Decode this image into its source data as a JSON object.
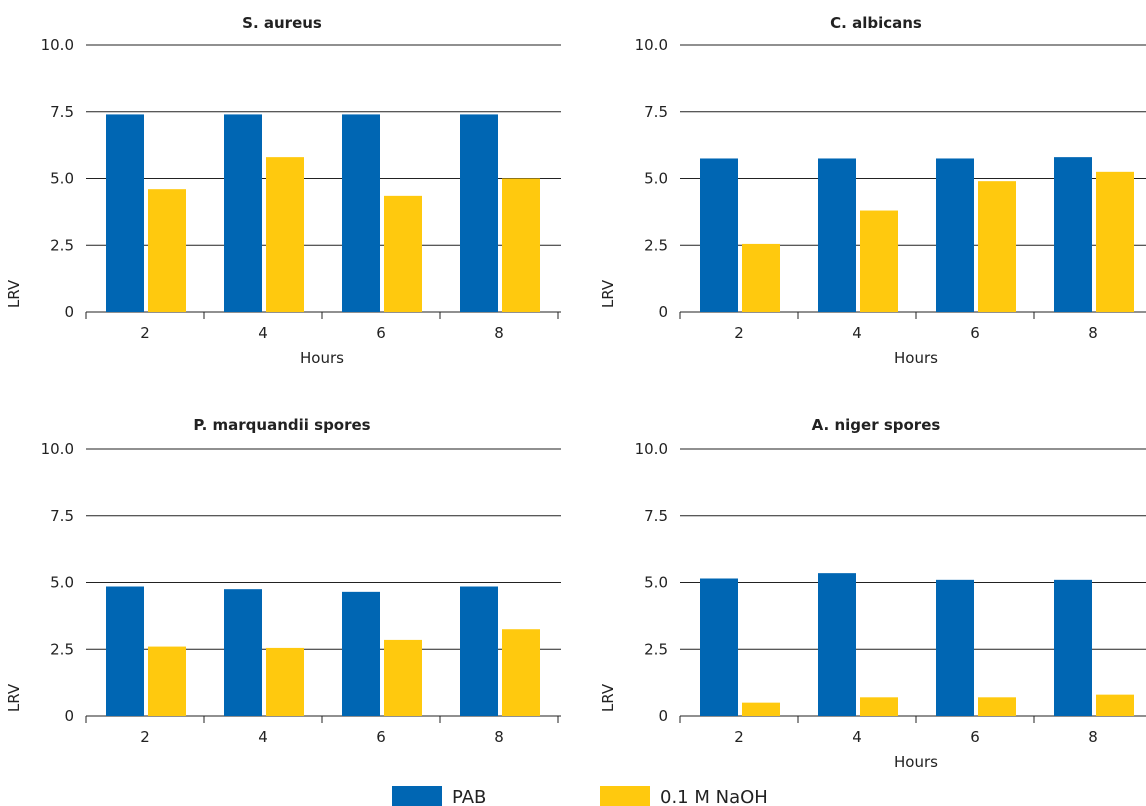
{
  "chart_data": [
    {
      "type": "bar",
      "title": "S. aureus",
      "xlabel": "Hours",
      "ylabel": "LRV",
      "categories": [
        "2",
        "4",
        "6",
        "8"
      ],
      "ylim": [
        0,
        10
      ],
      "yticks": [
        "0",
        "2.5",
        "5.0",
        "7.5",
        "10.0"
      ],
      "series": [
        {
          "name": "PAB",
          "values": [
            7.4,
            7.4,
            7.4,
            7.4
          ]
        },
        {
          "name": "0.1 M NaOH",
          "values": [
            4.6,
            5.8,
            4.35,
            5.0
          ]
        }
      ]
    },
    {
      "type": "bar",
      "title": "C. albicans",
      "xlabel": "Hours",
      "ylabel": "LRV",
      "categories": [
        "2",
        "4",
        "6",
        "8"
      ],
      "ylim": [
        0,
        10
      ],
      "yticks": [
        "0",
        "2.5",
        "5.0",
        "7.5",
        "10.0"
      ],
      "series": [
        {
          "name": "PAB",
          "values": [
            5.75,
            5.75,
            5.75,
            5.8
          ]
        },
        {
          "name": "0.1 M NaOH",
          "values": [
            2.55,
            3.8,
            4.9,
            5.25
          ]
        }
      ]
    },
    {
      "type": "bar",
      "title": "P. marquandii spores",
      "xlabel": "",
      "ylabel": "LRV",
      "categories": [
        "2",
        "4",
        "6",
        "8"
      ],
      "ylim": [
        0,
        10
      ],
      "yticks": [
        "0",
        "2.5",
        "5.0",
        "7.5",
        "10.0"
      ],
      "series": [
        {
          "name": "PAB",
          "values": [
            4.85,
            4.75,
            4.65,
            4.85
          ]
        },
        {
          "name": "0.1 M NaOH",
          "values": [
            2.6,
            2.55,
            2.85,
            3.25
          ]
        }
      ]
    },
    {
      "type": "bar",
      "title": "A. niger spores",
      "xlabel": "Hours",
      "ylabel": "LRV",
      "categories": [
        "2",
        "4",
        "6",
        "8"
      ],
      "ylim": [
        0,
        10
      ],
      "yticks": [
        "0",
        "2.5",
        "5.0",
        "7.5",
        "10.0"
      ],
      "series": [
        {
          "name": "PAB",
          "values": [
            5.15,
            5.35,
            5.1,
            5.1
          ]
        },
        {
          "name": "0.1 M NaOH",
          "values": [
            0.5,
            0.7,
            0.7,
            0.8
          ]
        }
      ]
    }
  ],
  "legend": {
    "placement": "bottom-center",
    "items": [
      {
        "label": "PAB",
        "color": "#0066b3"
      },
      {
        "label": "0.1 M NaOH",
        "color": "#ffc90e"
      }
    ]
  },
  "colors": {
    "PAB": "#0066b3",
    "NaOH": "#ffc90e",
    "axis": "#222222"
  }
}
